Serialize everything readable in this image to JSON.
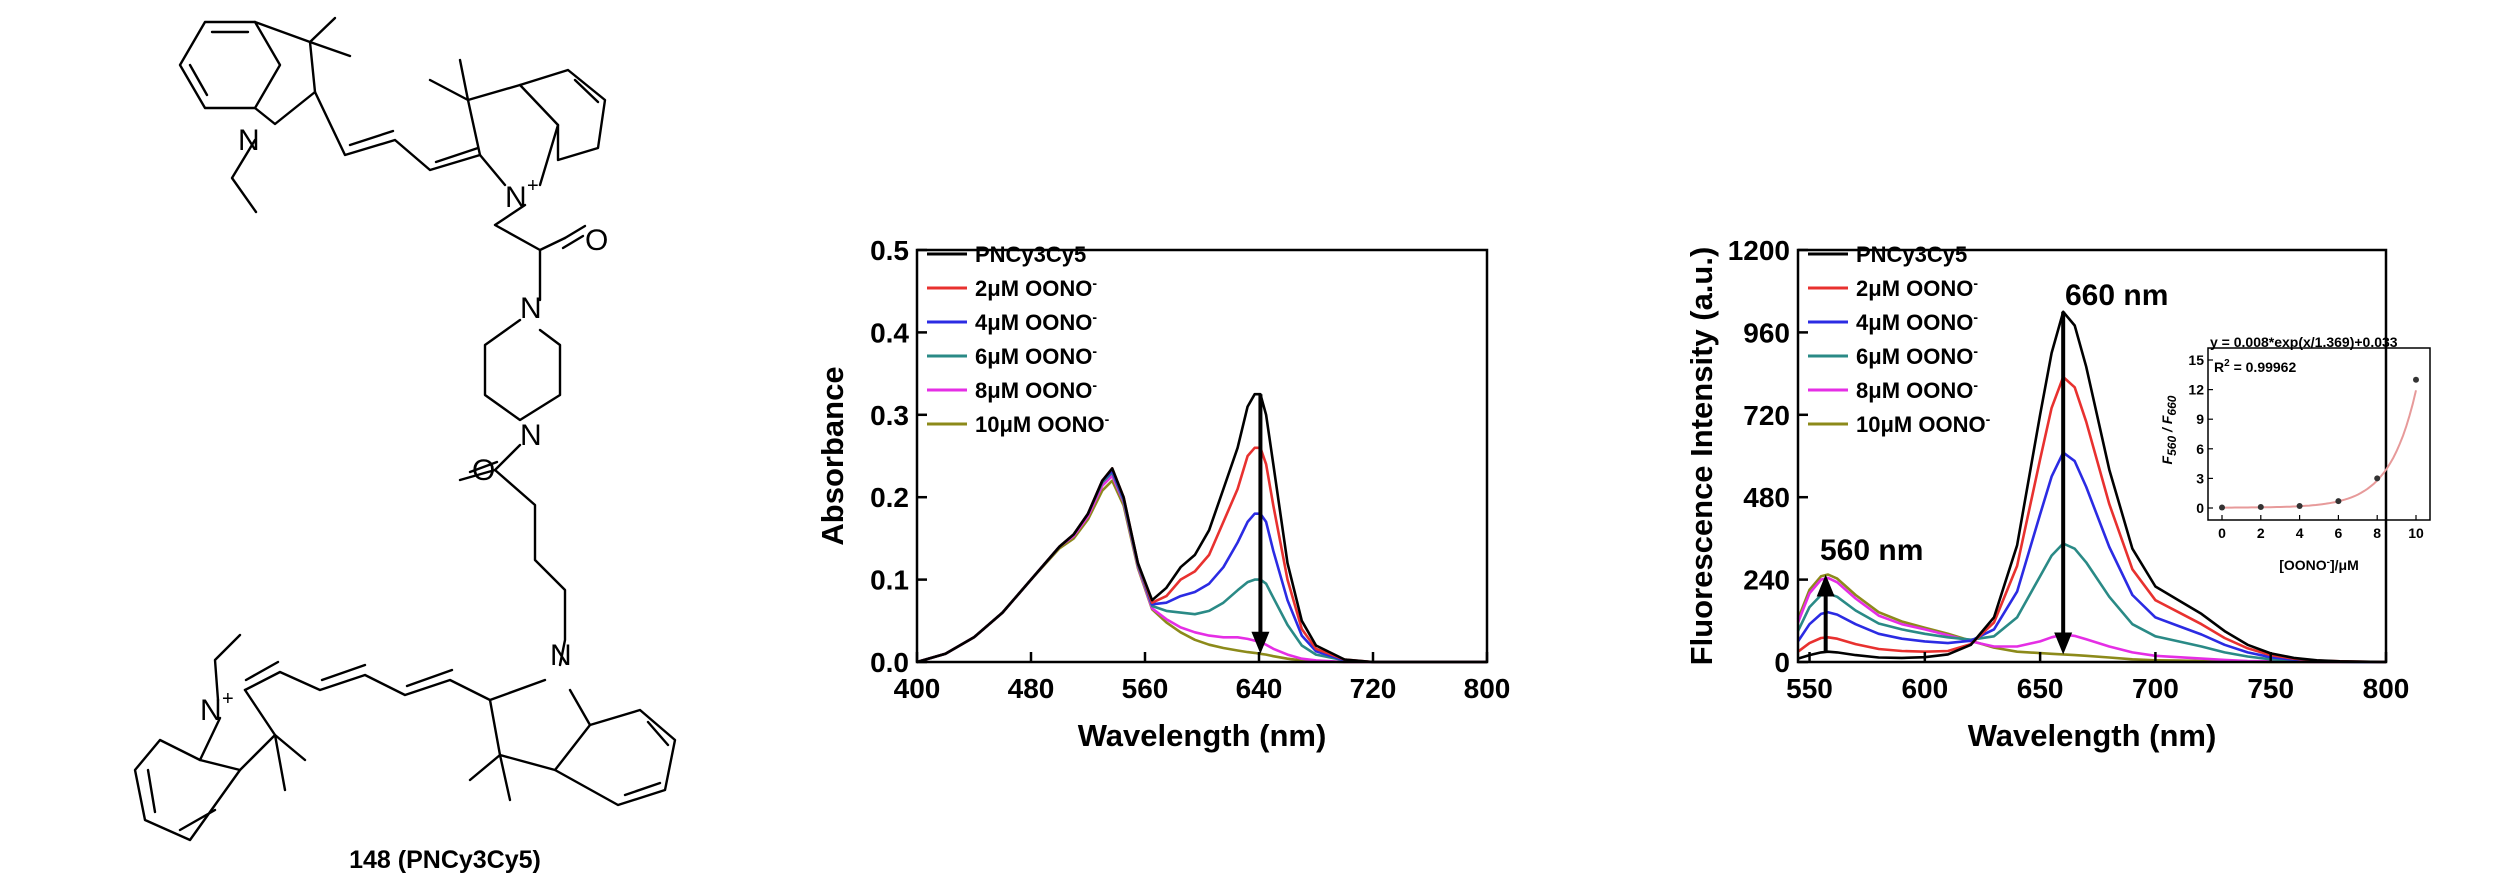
{
  "structure": {
    "caption": "148 (PNCy3Cy5)",
    "atoms": {
      "n": "N",
      "n_plus": "N",
      "charge": "+",
      "o": "O"
    }
  },
  "chart_data": [
    {
      "type": "line",
      "xlabel": "Wavelength (nm)",
      "ylabel": "Absorbance",
      "xlim": [
        400,
        800
      ],
      "ylim": [
        0,
        0.5
      ],
      "xticks": [
        "400",
        "480",
        "560",
        "640",
        "720",
        "800"
      ],
      "yticks": [
        "0.0",
        "0.1",
        "0.2",
        "0.3",
        "0.4",
        "0.5"
      ],
      "grid": false,
      "legend": "top-left",
      "x": [
        400,
        420,
        440,
        460,
        480,
        500,
        510,
        520,
        530,
        537,
        545,
        555,
        565,
        575,
        585,
        595,
        605,
        615,
        625,
        632,
        637,
        641,
        645,
        650,
        660,
        670,
        680,
        700,
        720,
        740,
        760,
        780,
        800
      ],
      "series": [
        {
          "name": "PNCy3Cy5",
          "color": "#000000",
          "values": [
            0.0,
            0.01,
            0.03,
            0.06,
            0.1,
            0.14,
            0.155,
            0.18,
            0.22,
            0.235,
            0.2,
            0.12,
            0.075,
            0.09,
            0.115,
            0.13,
            0.16,
            0.21,
            0.26,
            0.31,
            0.325,
            0.325,
            0.3,
            0.24,
            0.12,
            0.05,
            0.02,
            0.003,
            0.0,
            0.0,
            0.0,
            0.0,
            0.0
          ]
        },
        {
          "name": "2μM OONO",
          "color": "#e8312f",
          "values": [
            0.0,
            0.01,
            0.03,
            0.06,
            0.1,
            0.14,
            0.155,
            0.18,
            0.22,
            0.235,
            0.2,
            0.12,
            0.072,
            0.08,
            0.1,
            0.11,
            0.13,
            0.17,
            0.21,
            0.25,
            0.26,
            0.26,
            0.24,
            0.19,
            0.1,
            0.04,
            0.016,
            0.003,
            0.0,
            0.0,
            0.0,
            0.0,
            0.0
          ]
        },
        {
          "name": "4μM OONO",
          "color": "#2b2be3",
          "values": [
            0.0,
            0.01,
            0.03,
            0.06,
            0.1,
            0.14,
            0.155,
            0.18,
            0.22,
            0.232,
            0.198,
            0.12,
            0.07,
            0.072,
            0.08,
            0.085,
            0.095,
            0.115,
            0.145,
            0.17,
            0.18,
            0.18,
            0.17,
            0.135,
            0.075,
            0.032,
            0.013,
            0.002,
            0.0,
            0.0,
            0.0,
            0.0,
            0.0
          ]
        },
        {
          "name": "6μM OONO",
          "color": "#2a8a86",
          "values": [
            0.0,
            0.01,
            0.03,
            0.06,
            0.1,
            0.14,
            0.155,
            0.18,
            0.218,
            0.23,
            0.196,
            0.118,
            0.068,
            0.062,
            0.06,
            0.058,
            0.062,
            0.072,
            0.087,
            0.097,
            0.1,
            0.1,
            0.095,
            0.078,
            0.045,
            0.02,
            0.009,
            0.002,
            0.0,
            0.0,
            0.0,
            0.0,
            0.0
          ]
        },
        {
          "name": "8μM OONO",
          "color": "#e52ee5",
          "values": [
            0.0,
            0.01,
            0.03,
            0.06,
            0.1,
            0.14,
            0.153,
            0.177,
            0.214,
            0.226,
            0.194,
            0.116,
            0.065,
            0.052,
            0.042,
            0.036,
            0.032,
            0.03,
            0.03,
            0.028,
            0.026,
            0.024,
            0.021,
            0.016,
            0.009,
            0.004,
            0.002,
            0.0,
            0.0,
            0.0,
            0.0,
            0.0,
            0.0
          ]
        },
        {
          "name": "10μM OONO",
          "color": "#8c8a1a",
          "values": [
            0.0,
            0.01,
            0.03,
            0.06,
            0.1,
            0.138,
            0.15,
            0.173,
            0.208,
            0.22,
            0.19,
            0.114,
            0.064,
            0.048,
            0.036,
            0.027,
            0.021,
            0.017,
            0.014,
            0.012,
            0.011,
            0.01,
            0.009,
            0.007,
            0.004,
            0.002,
            0.001,
            0.0,
            0.0,
            0.0,
            0.0,
            0.0,
            0.0
          ]
        }
      ],
      "legend_superscript": "-",
      "arrow": {
        "x": 641,
        "from": 0.325,
        "to": 0.01
      }
    },
    {
      "type": "line",
      "xlabel": "Wavelength (nm)",
      "ylabel": "Fluorescence Intensity (a.u.)",
      "xlim": [
        545,
        800
      ],
      "ylim": [
        0,
        1200
      ],
      "xticks": [
        "550",
        "600",
        "650",
        "700",
        "750",
        "800"
      ],
      "yticks": [
        "0",
        "240",
        "480",
        "720",
        "960",
        "1200"
      ],
      "grid": false,
      "legend": "top-left",
      "x": [
        545,
        550,
        555,
        558,
        562,
        570,
        580,
        590,
        600,
        610,
        620,
        630,
        640,
        650,
        655,
        660,
        665,
        670,
        680,
        690,
        700,
        710,
        720,
        730,
        740,
        750,
        760,
        770,
        780,
        790,
        800
      ],
      "series": [
        {
          "name": "PNCy3Cy5",
          "color": "#000000",
          "values": [
            10,
            20,
            28,
            30,
            28,
            20,
            13,
            12,
            14,
            22,
            50,
            130,
            340,
            720,
            900,
            1020,
            980,
            860,
            560,
            330,
            220,
            180,
            140,
            90,
            50,
            25,
            12,
            5,
            2,
            1,
            0
          ]
        },
        {
          "name": "2μM OONO",
          "color": "#e8312f",
          "values": [
            30,
            55,
            70,
            72,
            68,
            52,
            38,
            32,
            30,
            32,
            52,
            115,
            280,
            590,
            740,
            830,
            800,
            700,
            460,
            270,
            180,
            145,
            110,
            70,
            40,
            20,
            10,
            4,
            2,
            1,
            0
          ]
        },
        {
          "name": "4μM OONO",
          "color": "#2b2be3",
          "values": [
            60,
            110,
            140,
            145,
            138,
            110,
            82,
            68,
            60,
            55,
            62,
            95,
            205,
            430,
            540,
            610,
            585,
            510,
            335,
            195,
            130,
            105,
            80,
            50,
            28,
            14,
            7,
            3,
            1,
            0,
            0
          ]
        },
        {
          "name": "6μM OONO",
          "color": "#2a8a86",
          "values": [
            90,
            160,
            195,
            200,
            190,
            150,
            112,
            95,
            82,
            72,
            65,
            75,
            130,
            250,
            310,
            345,
            330,
            290,
            190,
            110,
            75,
            60,
            45,
            28,
            16,
            8,
            4,
            2,
            1,
            0,
            0
          ]
        },
        {
          "name": "8μM OONO",
          "color": "#e52ee5",
          "values": [
            115,
            200,
            240,
            245,
            232,
            185,
            135,
            110,
            95,
            78,
            60,
            45,
            45,
            60,
            72,
            80,
            76,
            66,
            45,
            28,
            18,
            14,
            10,
            6,
            3,
            2,
            1,
            0,
            0,
            0,
            0
          ]
        },
        {
          "name": "10μM OONO",
          "color": "#8c8a1a",
          "values": [
            125,
            210,
            250,
            255,
            243,
            195,
            145,
            118,
            100,
            82,
            62,
            42,
            30,
            26,
            24,
            22,
            20,
            18,
            13,
            8,
            5,
            4,
            3,
            2,
            1,
            0,
            0,
            0,
            0,
            0,
            0
          ]
        }
      ],
      "legend_superscript": "-",
      "annotations": [
        "660 nm",
        "560 nm"
      ],
      "arrows": [
        {
          "x": 660,
          "from": 1020,
          "to": 22
        },
        {
          "x": 557,
          "from": 30,
          "to": 255
        }
      ],
      "inset": {
        "type": "scatter",
        "equation": "y = 0.008*exp(x/1.369)+0.033",
        "r2": "R",
        "r2_sup": "2",
        "r2_value": " = 0.99962",
        "ylabel_F1": "F",
        "ylabel_F1_sub": "560",
        "ylabel_sep": " / ",
        "ylabel_F2": "F",
        "ylabel_F2_sub": "660",
        "xlabel_a": "[OONO",
        "xlabel_sup": "-",
        "xlabel_b": "]/μM",
        "xticks": [
          "0",
          "2",
          "4",
          "6",
          "8",
          "10"
        ],
        "yticks": [
          "0",
          "3",
          "6",
          "9",
          "12",
          "15"
        ],
        "xlim": [
          0,
          10
        ],
        "ylim": [
          0,
          15
        ],
        "x": [
          0,
          2,
          4,
          6,
          8,
          10
        ],
        "y": [
          0.05,
          0.1,
          0.2,
          0.7,
          3.0,
          13.0
        ],
        "fit_color": "#e79a9a"
      }
    }
  ]
}
